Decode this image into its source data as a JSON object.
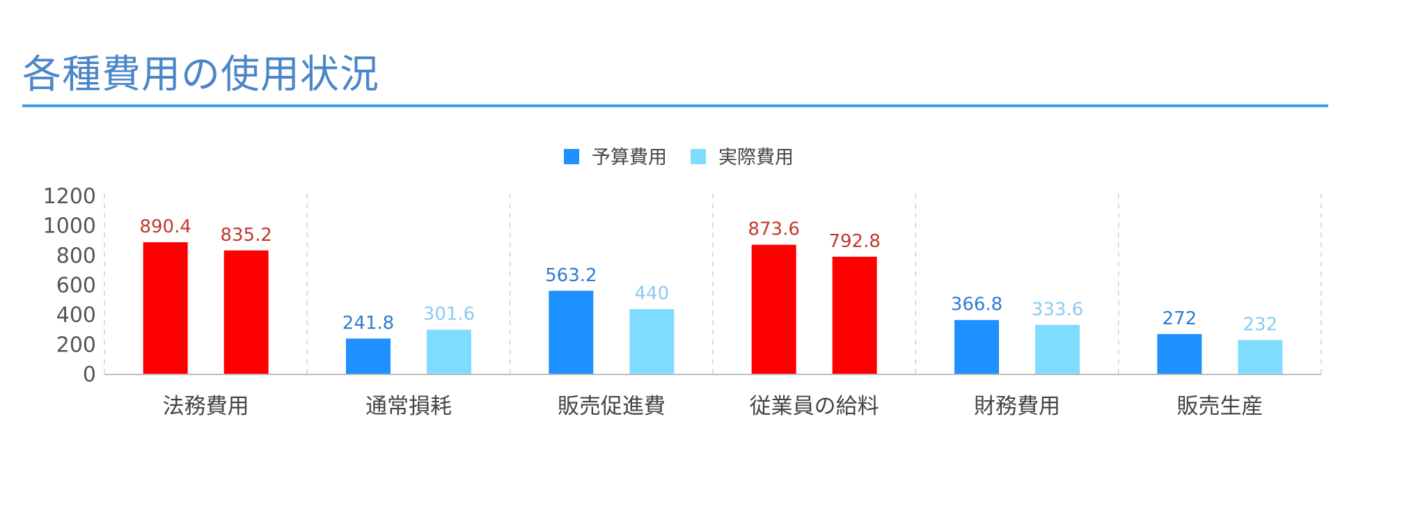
{
  "page": {
    "title": "各種費用の使用状況"
  },
  "chart_data": {
    "type": "bar",
    "title": "",
    "xlabel": "",
    "ylabel": "",
    "ylim": [
      0,
      1200
    ],
    "yticks": [
      0,
      200,
      400,
      600,
      800,
      1000,
      1200
    ],
    "grid": "vertical-dashed-between-categories",
    "legend_position": "top-center",
    "categories": [
      "法務費用",
      "通常損耗",
      "販売促進費",
      "従業員の給料",
      "財務費用",
      "販売生産"
    ],
    "series": [
      {
        "name": "予算費用",
        "values": [
          890.4,
          241.8,
          563.2,
          873.6,
          366.8,
          272
        ],
        "color": "#1e90ff",
        "label_color": "#2c7cd1"
      },
      {
        "name": "実際費用",
        "values": [
          835.2,
          301.6,
          440,
          792.8,
          333.6,
          232
        ],
        "color": "#80dcff",
        "label_color": "#8ccaf0"
      }
    ],
    "highlighted_categories": [
      0,
      3
    ],
    "highlight_color": "#ff0000",
    "highlight_label_color": "#c0392b"
  }
}
